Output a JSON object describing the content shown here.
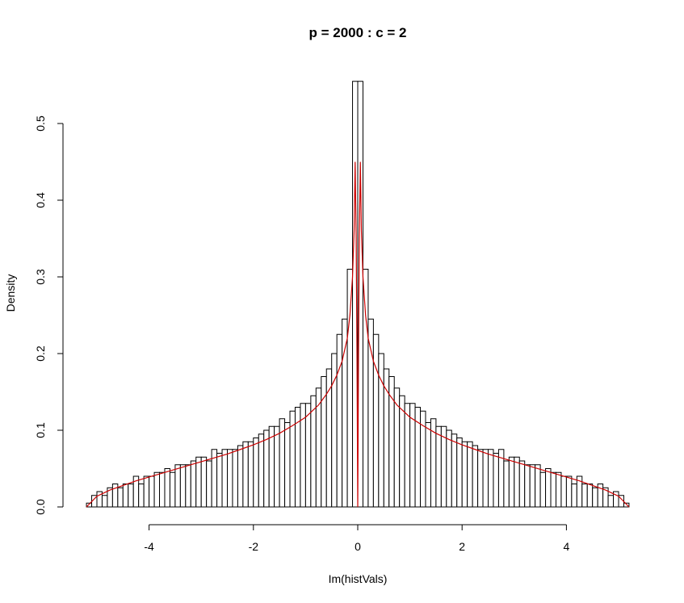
{
  "chart_data": {
    "type": "bar",
    "title": "p = 2000 : c = 2",
    "xlabel": "Im(histVals)",
    "ylabel": "Density",
    "xlim": [
      -5.2,
      5.2
    ],
    "ylim": [
      0,
      0.555
    ],
    "xticks": [
      -4,
      -2,
      0,
      2,
      4
    ],
    "yticks": [
      0.0,
      0.1,
      0.2,
      0.3,
      0.4,
      0.5
    ],
    "grid": false,
    "bin_width": 0.1,
    "bin_start": -5.2,
    "densities": [
      0.005,
      0.015,
      0.02,
      0.015,
      0.025,
      0.03,
      0.025,
      0.03,
      0.03,
      0.04,
      0.03,
      0.04,
      0.04,
      0.045,
      0.045,
      0.05,
      0.045,
      0.055,
      0.055,
      0.055,
      0.06,
      0.065,
      0.065,
      0.06,
      0.075,
      0.07,
      0.075,
      0.075,
      0.075,
      0.08,
      0.085,
      0.085,
      0.09,
      0.095,
      0.1,
      0.105,
      0.105,
      0.115,
      0.11,
      0.125,
      0.13,
      0.135,
      0.135,
      0.145,
      0.155,
      0.17,
      0.18,
      0.2,
      0.225,
      0.245,
      0.31,
      0.555,
      0.555,
      0.31,
      0.245,
      0.225,
      0.2,
      0.18,
      0.17,
      0.155,
      0.145,
      0.135,
      0.135,
      0.13,
      0.125,
      0.11,
      0.115,
      0.105,
      0.105,
      0.1,
      0.095,
      0.09,
      0.085,
      0.085,
      0.08,
      0.075,
      0.075,
      0.075,
      0.07,
      0.075,
      0.06,
      0.065,
      0.065,
      0.06,
      0.055,
      0.055,
      0.055,
      0.045,
      0.05,
      0.045,
      0.045,
      0.04,
      0.04,
      0.03,
      0.04,
      0.03,
      0.03,
      0.025,
      0.03,
      0.025,
      0.015,
      0.02,
      0.015,
      0.005
    ],
    "curve": {
      "color": "#cc0000",
      "points": [
        [
          -5.2,
          0.0
        ],
        [
          -5.0,
          0.014
        ],
        [
          -4.75,
          0.022
        ],
        [
          -4.5,
          0.028
        ],
        [
          -4.25,
          0.034
        ],
        [
          -4.0,
          0.039
        ],
        [
          -3.75,
          0.044
        ],
        [
          -3.5,
          0.049
        ],
        [
          -3.25,
          0.054
        ],
        [
          -3.0,
          0.059
        ],
        [
          -2.75,
          0.064
        ],
        [
          -2.5,
          0.069
        ],
        [
          -2.25,
          0.075
        ],
        [
          -2.0,
          0.081
        ],
        [
          -1.75,
          0.088
        ],
        [
          -1.5,
          0.096
        ],
        [
          -1.25,
          0.106
        ],
        [
          -1.0,
          0.117
        ],
        [
          -0.75,
          0.133
        ],
        [
          -0.6,
          0.147
        ],
        [
          -0.5,
          0.158
        ],
        [
          -0.4,
          0.172
        ],
        [
          -0.3,
          0.19
        ],
        [
          -0.2,
          0.22
        ],
        [
          -0.15,
          0.25
        ],
        [
          -0.1,
          0.3
        ],
        [
          -0.07,
          0.36
        ],
        [
          -0.05,
          0.45
        ],
        [
          -0.03,
          0.35
        ],
        [
          -0.015,
          0.2
        ],
        [
          0.0,
          0.0
        ],
        [
          0.015,
          0.2
        ],
        [
          0.03,
          0.35
        ],
        [
          0.05,
          0.45
        ],
        [
          0.07,
          0.36
        ],
        [
          0.1,
          0.3
        ],
        [
          0.15,
          0.25
        ],
        [
          0.2,
          0.22
        ],
        [
          0.3,
          0.19
        ],
        [
          0.4,
          0.172
        ],
        [
          0.5,
          0.158
        ],
        [
          0.6,
          0.147
        ],
        [
          0.75,
          0.133
        ],
        [
          1.0,
          0.117
        ],
        [
          1.25,
          0.106
        ],
        [
          1.5,
          0.096
        ],
        [
          1.75,
          0.088
        ],
        [
          2.0,
          0.081
        ],
        [
          2.25,
          0.075
        ],
        [
          2.5,
          0.069
        ],
        [
          2.75,
          0.064
        ],
        [
          3.0,
          0.059
        ],
        [
          3.25,
          0.054
        ],
        [
          3.5,
          0.049
        ],
        [
          3.75,
          0.044
        ],
        [
          4.0,
          0.039
        ],
        [
          4.25,
          0.034
        ],
        [
          4.5,
          0.028
        ],
        [
          4.75,
          0.022
        ],
        [
          5.0,
          0.014
        ],
        [
          5.2,
          0.0
        ]
      ]
    }
  }
}
